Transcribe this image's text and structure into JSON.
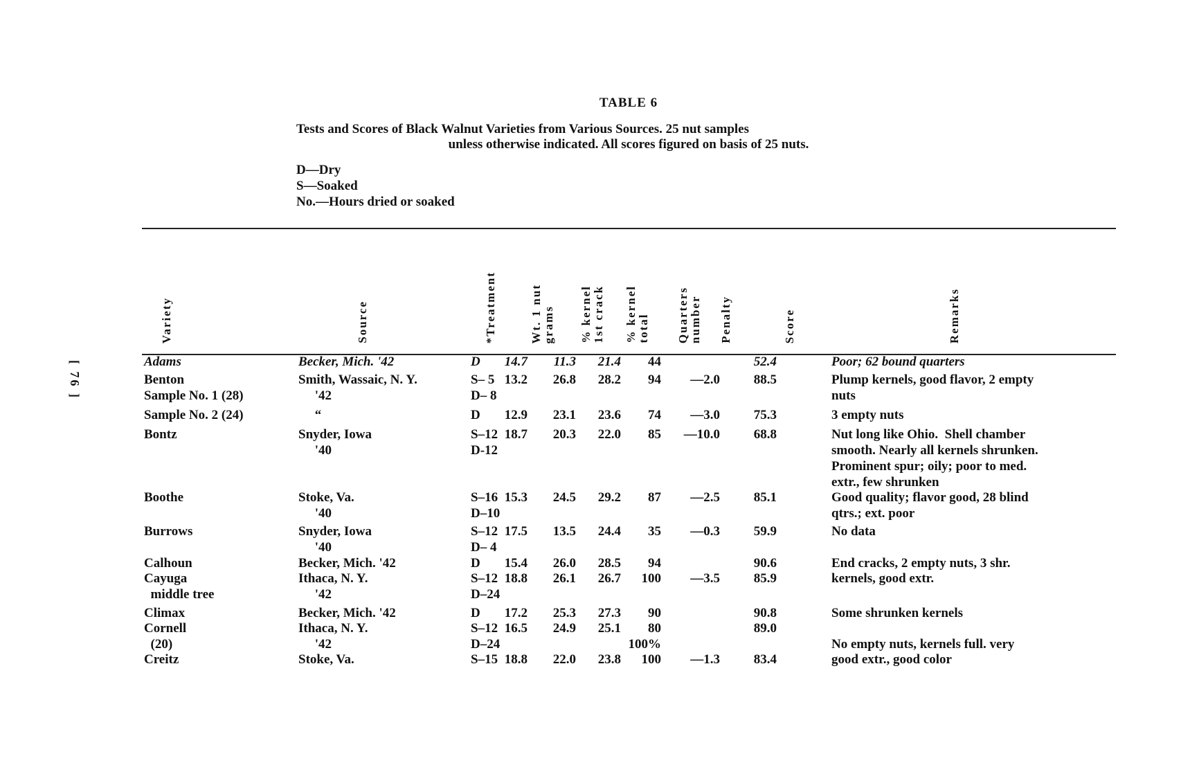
{
  "page_marker": "[ 76 ]",
  "title": "TABLE 6",
  "caption": {
    "line1": "Tests and Scores of Black Walnut Varieties from Various Sources.  25 nut samples",
    "line2": "unless otherwise indicated.  All scores figured on basis of 25 nuts."
  },
  "legend": [
    "D—Dry",
    "S—Soaked",
    "No.—Hours dried or soaked"
  ],
  "columns": {
    "variety": [
      "Variety"
    ],
    "source": [
      "Source"
    ],
    "treatment": [
      "*Treatment"
    ],
    "weight": [
      "Wt. 1 nut",
      "grams"
    ],
    "kernel_first": [
      "% kernel",
      "1st crack"
    ],
    "kernel_total": [
      "% kernel",
      "total"
    ],
    "quarters": [
      "Quarters",
      "number"
    ],
    "penalty": [
      "Penalty"
    ],
    "score": [
      "Score"
    ],
    "remarks": [
      "Remarks"
    ]
  },
  "rows": [
    {
      "variety": [
        "Adams"
      ],
      "source": [
        "Becker, Mich. '42"
      ],
      "treatment": [
        "D"
      ],
      "weight": [
        "14.7"
      ],
      "kernel_first": [
        "11.3"
      ],
      "kernel_total": [
        "21.4"
      ],
      "quarters": [
        "44"
      ],
      "penalty": [
        ""
      ],
      "score": [
        "52.4"
      ],
      "remarks": [
        "Poor; 62 bound quarters"
      ]
    },
    {
      "variety": [
        "Benton",
        "Sample No. 1 (28)"
      ],
      "source": [
        "Smith, Wassaic, N. Y.",
        "     '42"
      ],
      "treatment": [
        "S– 5",
        "D– 8"
      ],
      "weight": [
        "13.2"
      ],
      "kernel_first": [
        "26.8"
      ],
      "kernel_total": [
        "28.2"
      ],
      "quarters": [
        "94"
      ],
      "penalty": [
        "—2.0"
      ],
      "score": [
        "88.5"
      ],
      "remarks": [
        "Plump kernels, good flavor, 2 empty",
        "nuts"
      ]
    },
    {
      "variety": [
        "Sample No. 2 (24)"
      ],
      "source": [
        "     “"
      ],
      "treatment": [
        "D"
      ],
      "weight": [
        "12.9"
      ],
      "kernel_first": [
        "23.1"
      ],
      "kernel_total": [
        "23.6"
      ],
      "quarters": [
        "74"
      ],
      "penalty": [
        "—3.0"
      ],
      "score": [
        "75.3"
      ],
      "remarks": [
        "3 empty nuts"
      ]
    },
    {
      "variety": [
        "Bontz"
      ],
      "source": [
        "Snyder, Iowa",
        "     '40"
      ],
      "treatment": [
        "S–12",
        "D-12"
      ],
      "weight": [
        "18.7"
      ],
      "kernel_first": [
        "20.3"
      ],
      "kernel_total": [
        "22.0"
      ],
      "quarters": [
        "85"
      ],
      "penalty": [
        "—10.0"
      ],
      "score": [
        "68.8"
      ],
      "remarks": [
        "Nut long like Ohio.  Shell chamber",
        "smooth. Nearly all kernels shrunken.",
        "Prominent spur; oily; poor to med.",
        "extr., few shrunken"
      ]
    },
    {
      "variety": [
        "Boothe"
      ],
      "source": [
        "Stoke, Va.",
        "     '40"
      ],
      "treatment": [
        "S–16",
        "D–10"
      ],
      "weight": [
        "15.3"
      ],
      "kernel_first": [
        "24.5"
      ],
      "kernel_total": [
        "29.2"
      ],
      "quarters": [
        "87"
      ],
      "penalty": [
        "—2.5"
      ],
      "score": [
        "85.1"
      ],
      "remarks": [
        "Good quality; flavor good, 28 blind",
        "qtrs.; ext. poor"
      ]
    },
    {
      "variety": [
        "Burrows"
      ],
      "source": [
        "Snyder, Iowa",
        "     '40"
      ],
      "treatment": [
        "S–12",
        "D– 4"
      ],
      "weight": [
        "17.5"
      ],
      "kernel_first": [
        "13.5"
      ],
      "kernel_total": [
        "24.4"
      ],
      "quarters": [
        "35"
      ],
      "penalty": [
        "—0.3"
      ],
      "score": [
        "59.9"
      ],
      "remarks": [
        "No data"
      ]
    },
    {
      "variety": [
        "Calhoun"
      ],
      "source": [
        "Becker, Mich. '42"
      ],
      "treatment": [
        "D"
      ],
      "weight": [
        "15.4"
      ],
      "kernel_first": [
        "26.0"
      ],
      "kernel_total": [
        "28.5"
      ],
      "quarters": [
        "94"
      ],
      "penalty": [
        ""
      ],
      "score": [
        "90.6"
      ],
      "remarks": [
        "End cracks, 2 empty nuts, 3 shr."
      ]
    },
    {
      "variety": [
        "Cayuga",
        "  middle tree"
      ],
      "source": [
        "Ithaca, N. Y.",
        "     '42"
      ],
      "treatment": [
        "S–12",
        "D–24"
      ],
      "weight": [
        "18.8"
      ],
      "kernel_first": [
        "26.1"
      ],
      "kernel_total": [
        "26.7"
      ],
      "quarters": [
        "100"
      ],
      "penalty": [
        "—3.5"
      ],
      "score": [
        "85.9"
      ],
      "remarks": [
        "kernels, good extr."
      ]
    },
    {
      "variety": [
        "Climax"
      ],
      "source": [
        "Becker, Mich. '42"
      ],
      "treatment": [
        "D"
      ],
      "weight": [
        "17.2"
      ],
      "kernel_first": [
        "25.3"
      ],
      "kernel_total": [
        "27.3"
      ],
      "quarters": [
        "90"
      ],
      "penalty": [
        ""
      ],
      "score": [
        "90.8"
      ],
      "remarks": [
        "Some shrunken kernels"
      ]
    },
    {
      "variety": [
        "Cornell",
        "  (20)"
      ],
      "source": [
        "Ithaca, N. Y.",
        "     '42"
      ],
      "treatment": [
        "S–12",
        "D–24"
      ],
      "weight": [
        "16.5"
      ],
      "kernel_first": [
        "24.9"
      ],
      "kernel_total": [
        "25.1"
      ],
      "quarters": [
        "80",
        "100%"
      ],
      "penalty": [
        ""
      ],
      "score": [
        "89.0"
      ],
      "remarks": [
        "",
        "No empty nuts, kernels full. very"
      ]
    },
    {
      "variety": [
        "Creitz"
      ],
      "source": [
        "Stoke, Va."
      ],
      "treatment": [
        "S–15"
      ],
      "weight": [
        "18.8"
      ],
      "kernel_first": [
        "22.0"
      ],
      "kernel_total": [
        "23.8"
      ],
      "quarters": [
        "100"
      ],
      "penalty": [
        "—1.3"
      ],
      "score": [
        "83.4"
      ],
      "remarks": [
        "good extr., good color"
      ]
    }
  ]
}
